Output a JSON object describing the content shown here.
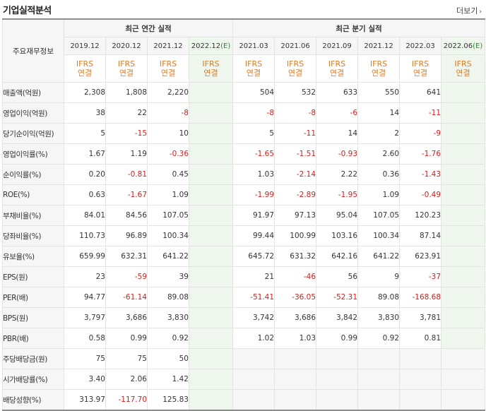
{
  "header": {
    "title": "기업실적분석",
    "more_label": "더보기",
    "more_arrow": "›"
  },
  "table": {
    "corner_label": "주요재무정보",
    "groups": [
      {
        "label": "최근 연간 실적"
      },
      {
        "label": "최근 분기 실적"
      }
    ],
    "annual_periods": [
      "2019.12",
      "2020.12",
      "2021.12",
      "2022.12"
    ],
    "annual_est_suffix": "(E)",
    "quarter_periods": [
      "2021.03",
      "2021.06",
      "2021.09",
      "2021.12",
      "2022.03",
      "2022.06"
    ],
    "quarter_est_suffix": "(E)",
    "ifrs_line1": "IFRS",
    "ifrs_line2": "연결",
    "rows": [
      {
        "label": "매출액(억원)",
        "annual": [
          "2,308",
          "1,808",
          "2,220",
          ""
        ],
        "quarter": [
          "504",
          "532",
          "633",
          "550",
          "641",
          ""
        ]
      },
      {
        "label": "영업이익(억원)",
        "annual": [
          "38",
          "22",
          "-8",
          ""
        ],
        "quarter": [
          "-8",
          "-8",
          "-6",
          "14",
          "-11",
          ""
        ]
      },
      {
        "label": "당기순이익(억원)",
        "annual": [
          "5",
          "-15",
          "10",
          ""
        ],
        "quarter": [
          "5",
          "-11",
          "14",
          "2",
          "-9",
          ""
        ]
      },
      {
        "label": "영업이익률(%)",
        "annual": [
          "1.67",
          "1.19",
          "-0.36",
          ""
        ],
        "quarter": [
          "-1.65",
          "-1.51",
          "-0.93",
          "2.60",
          "-1.76",
          ""
        ]
      },
      {
        "label": "순이익률(%)",
        "annual": [
          "0.20",
          "-0.81",
          "0.45",
          ""
        ],
        "quarter": [
          "1.03",
          "-2.14",
          "2.22",
          "0.36",
          "-1.43",
          ""
        ]
      },
      {
        "label": "ROE(%)",
        "annual": [
          "0.63",
          "-1.67",
          "1.09",
          ""
        ],
        "quarter": [
          "-1.99",
          "-2.89",
          "-1.95",
          "1.09",
          "-0.49",
          ""
        ]
      },
      {
        "label": "부채비율(%)",
        "annual": [
          "84.01",
          "84.56",
          "107.05",
          ""
        ],
        "quarter": [
          "91.97",
          "97.13",
          "95.04",
          "107.05",
          "120.23",
          ""
        ]
      },
      {
        "label": "당좌비율(%)",
        "annual": [
          "110.73",
          "96.89",
          "100.34",
          ""
        ],
        "quarter": [
          "99.44",
          "100.99",
          "103.16",
          "100.34",
          "87.14",
          ""
        ]
      },
      {
        "label": "유보율(%)",
        "annual": [
          "659.99",
          "632.31",
          "641.22",
          ""
        ],
        "quarter": [
          "645.72",
          "631.32",
          "642.16",
          "641.22",
          "623.91",
          ""
        ]
      },
      {
        "label": "EPS(원)",
        "annual": [
          "23",
          "-59",
          "39",
          ""
        ],
        "quarter": [
          "21",
          "-46",
          "56",
          "9",
          "-37",
          ""
        ]
      },
      {
        "label": "PER(배)",
        "annual": [
          "94.77",
          "-61.14",
          "89.08",
          ""
        ],
        "quarter": [
          "-51.41",
          "-36.05",
          "-52.31",
          "89.08",
          "-168.68",
          ""
        ]
      },
      {
        "label": "BPS(원)",
        "annual": [
          "3,797",
          "3,686",
          "3,830",
          ""
        ],
        "quarter": [
          "3,742",
          "3,686",
          "3,842",
          "3,830",
          "3,781",
          ""
        ]
      },
      {
        "label": "PBR(배)",
        "annual": [
          "0.58",
          "0.99",
          "0.92",
          ""
        ],
        "quarter": [
          "1.02",
          "1.03",
          "0.99",
          "0.92",
          "0.81",
          ""
        ]
      },
      {
        "label": "주당배당금(원)",
        "annual": [
          "75",
          "75",
          "50",
          ""
        ],
        "quarter": null
      },
      {
        "label": "시가배당률(%)",
        "annual": [
          "3.40",
          "2.06",
          "1.42",
          ""
        ],
        "quarter": null
      },
      {
        "label": "배당성향(%)",
        "annual": [
          "313.97",
          "-117.70",
          "125.83",
          ""
        ],
        "quarter": null
      }
    ],
    "colors": {
      "negative": "#d41c1c",
      "ifrs": "#e07b20",
      "estimate_bg": "#eef6ee",
      "estimate_text": "#2f8a2f"
    }
  }
}
